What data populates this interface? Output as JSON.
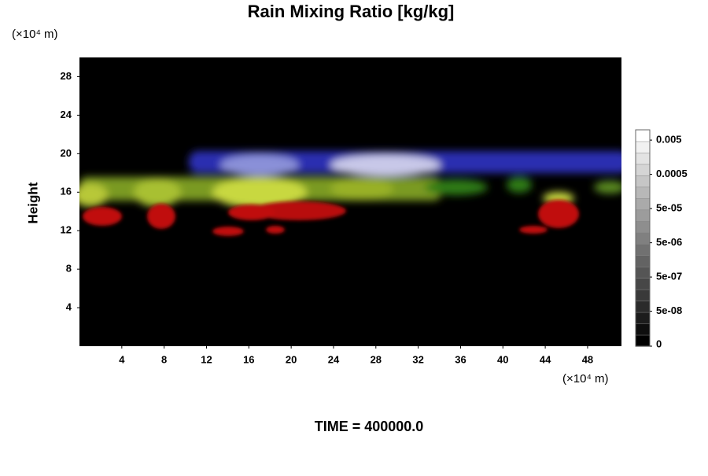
{
  "chart_data": {
    "type": "volume",
    "title": "Rain Mixing Ratio [kg/kg]",
    "y_label": "Height",
    "y_unit": "(×10⁴ m)",
    "x_unit": "(×10⁴ m)",
    "footer": "TIME = 400000.0",
    "xlim": [
      0,
      51.2
    ],
    "xticks": [
      4,
      8,
      12,
      16,
      20,
      24,
      28,
      32,
      36,
      40,
      44,
      48
    ],
    "ylim": [
      0,
      30
    ],
    "yticks": [
      4,
      8,
      12,
      16,
      20,
      24,
      28
    ],
    "colorbar": {
      "scale": "log",
      "clim": [
        0,
        0.01
      ],
      "ticks": [
        0.005,
        0.0005,
        {
          "value": 5e-05,
          "label": "5e-05"
        },
        {
          "value": 5e-06,
          "label": "5e-06"
        },
        {
          "value": 5e-07,
          "label": "5e-07"
        },
        {
          "value": 5e-08,
          "label": "5e-08"
        },
        0
      ]
    }
  }
}
